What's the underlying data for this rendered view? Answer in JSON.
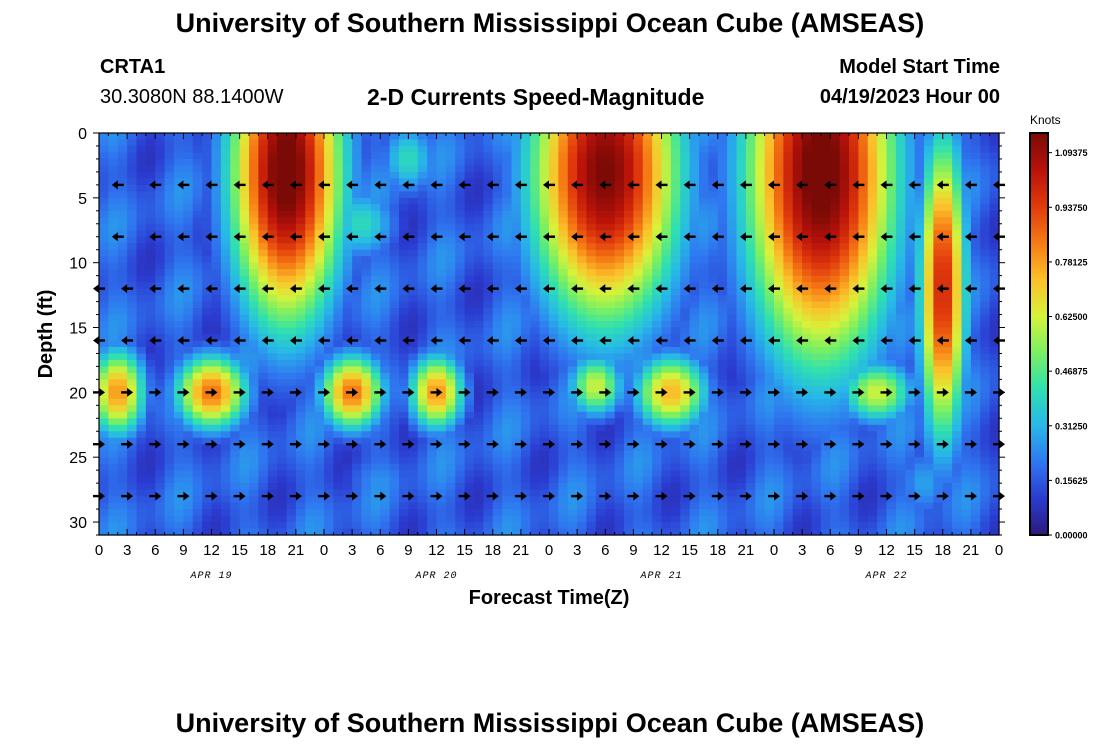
{
  "page": {
    "title_top": "University of Southern Mississippi Ocean Cube (AMSEAS)",
    "title_bottom": "University of Southern Mississippi Ocean Cube (AMSEAS)",
    "station_id": "CRTA1",
    "station_coords": "30.3080N  88.1400W",
    "subtitle": "2-D Currents Speed-Magnitude",
    "start_label": "Model Start Time",
    "start_value": "04/19/2023 Hour 00"
  },
  "chart_data": {
    "type": "heatmap",
    "title": "2-D Currents Speed-Magnitude",
    "xlabel": "Forecast Time(Z)",
    "ylabel": "Depth (ft)",
    "xlim": [
      0,
      96
    ],
    "ylim": [
      0,
      31
    ],
    "x_ticks": [
      {
        "v": 0,
        "label": "0"
      },
      {
        "v": 3,
        "label": "3"
      },
      {
        "v": 6,
        "label": "6"
      },
      {
        "v": 9,
        "label": "9"
      },
      {
        "v": 12,
        "label": "12"
      },
      {
        "v": 15,
        "label": "15"
      },
      {
        "v": 18,
        "label": "18"
      },
      {
        "v": 21,
        "label": "21"
      },
      {
        "v": 24,
        "label": "0"
      },
      {
        "v": 27,
        "label": "3"
      },
      {
        "v": 30,
        "label": "6"
      },
      {
        "v": 33,
        "label": "9"
      },
      {
        "v": 36,
        "label": "12"
      },
      {
        "v": 39,
        "label": "15"
      },
      {
        "v": 42,
        "label": "18"
      },
      {
        "v": 45,
        "label": "21"
      },
      {
        "v": 48,
        "label": "0"
      },
      {
        "v": 51,
        "label": "3"
      },
      {
        "v": 54,
        "label": "6"
      },
      {
        "v": 57,
        "label": "9"
      },
      {
        "v": 60,
        "label": "12"
      },
      {
        "v": 63,
        "label": "15"
      },
      {
        "v": 66,
        "label": "18"
      },
      {
        "v": 69,
        "label": "21"
      },
      {
        "v": 72,
        "label": "0"
      },
      {
        "v": 75,
        "label": "3"
      },
      {
        "v": 78,
        "label": "6"
      },
      {
        "v": 81,
        "label": "9"
      },
      {
        "v": 84,
        "label": "12"
      },
      {
        "v": 87,
        "label": "15"
      },
      {
        "v": 90,
        "label": "18"
      },
      {
        "v": 93,
        "label": "21"
      },
      {
        "v": 96,
        "label": "0"
      }
    ],
    "y_ticks": [
      0,
      5,
      10,
      15,
      20,
      25,
      30
    ],
    "date_labels": [
      {
        "v": 12,
        "label": "APR 19"
      },
      {
        "v": 36,
        "label": "APR 20"
      },
      {
        "v": 60,
        "label": "APR 21"
      },
      {
        "v": 84,
        "label": "APR 22"
      }
    ],
    "colorbar": {
      "label": "Knots",
      "min": 0.0,
      "max": 1.15,
      "ticks": [
        {
          "v": 1.09375,
          "label": "1.09375"
        },
        {
          "v": 0.9375,
          "label": "0.93750"
        },
        {
          "v": 0.78125,
          "label": "0.78125"
        },
        {
          "v": 0.625,
          "label": "0.62500"
        },
        {
          "v": 0.46875,
          "label": "0.46875"
        },
        {
          "v": 0.3125,
          "label": "0.31250"
        },
        {
          "v": 0.15625,
          "label": "0.15625"
        },
        {
          "v": 0.0,
          "label": "0.00000"
        }
      ],
      "colors": [
        "#2b1a7a",
        "#2b3bd0",
        "#2f78f0",
        "#27b8e8",
        "#2fe0b0",
        "#7cf060",
        "#d8f23a",
        "#fbc02a",
        "#f57a14",
        "#e03a0c",
        "#b8120a",
        "#7a0a06"
      ]
    },
    "speed_blobs": [
      {
        "t": 20,
        "d": 3,
        "rt": 6,
        "rd": 12,
        "a": 1.2
      },
      {
        "t": 54,
        "d": 3,
        "rt": 8,
        "rd": 12,
        "a": 1.15
      },
      {
        "t": 77,
        "d": 3,
        "rt": 8,
        "rd": 15,
        "a": 1.2
      },
      {
        "t": 90,
        "d": 12,
        "rt": 2.5,
        "rd": 12,
        "a": 1.0
      },
      {
        "t": 2,
        "d": 20,
        "rt": 3,
        "rd": 3.5,
        "a": 0.8
      },
      {
        "t": 12,
        "d": 20,
        "rt": 4,
        "rd": 3,
        "a": 0.85
      },
      {
        "t": 27,
        "d": 20,
        "rt": 3.5,
        "rd": 3,
        "a": 0.85
      },
      {
        "t": 36,
        "d": 20,
        "rt": 3,
        "rd": 3,
        "a": 0.8
      },
      {
        "t": 53,
        "d": 19.5,
        "rt": 3,
        "rd": 2.5,
        "a": 0.62
      },
      {
        "t": 61,
        "d": 20,
        "rt": 4,
        "rd": 3,
        "a": 0.75
      },
      {
        "t": 83,
        "d": 20,
        "rt": 4,
        "rd": 2.5,
        "a": 0.62
      },
      {
        "t": 28,
        "d": 7,
        "rt": 4,
        "rd": 3,
        "a": 0.4
      },
      {
        "t": 33,
        "d": 2,
        "rt": 3,
        "rd": 3,
        "a": 0.4
      },
      {
        "t": 88,
        "d": 27,
        "rt": 3,
        "rd": 3,
        "a": 0.28
      },
      {
        "t": 30,
        "d": 27,
        "rt": 4,
        "rd": 3,
        "a": 0.25
      }
    ],
    "arrows": [
      {
        "d": 4,
        "t": [
          2,
          6,
          9,
          12,
          15,
          18,
          21,
          24,
          27,
          30,
          33,
          36,
          39,
          42,
          45,
          48,
          51,
          54,
          57,
          60,
          63,
          66,
          69,
          72,
          75,
          78,
          81,
          84,
          87,
          90,
          93,
          96
        ],
        "dir": "W"
      },
      {
        "d": 8,
        "t": [
          2,
          6,
          9,
          12,
          15,
          18,
          21,
          24,
          27,
          30,
          33,
          36,
          39,
          42,
          45,
          48,
          51,
          54,
          57,
          60,
          63,
          66,
          69,
          72,
          75,
          78,
          81,
          84,
          87,
          90,
          93,
          96
        ],
        "dir": "W"
      },
      {
        "d": 12,
        "t": [
          0,
          3,
          6,
          9,
          12,
          15,
          18,
          21,
          24,
          27,
          30,
          33,
          36,
          39,
          42,
          45,
          48,
          51,
          54,
          57,
          60,
          63,
          66,
          69,
          72,
          75,
          78,
          81,
          84,
          87,
          90,
          93,
          96
        ],
        "dir": "W"
      },
      {
        "d": 16,
        "t": [
          0,
          3,
          6,
          9,
          12,
          15,
          18,
          21,
          24,
          27,
          30,
          33,
          36,
          39,
          42,
          45,
          48,
          51,
          54,
          57,
          60,
          63,
          66,
          69,
          72,
          75,
          78,
          81,
          84,
          87,
          90,
          93,
          96
        ],
        "dir": "W"
      },
      {
        "d": 20,
        "t": [
          0,
          3,
          6,
          9,
          12,
          15,
          18,
          21,
          24,
          27,
          30,
          33,
          36,
          39,
          42,
          45,
          48,
          51,
          54,
          57,
          60,
          63,
          66,
          69,
          72,
          75,
          78,
          81,
          84,
          87,
          90,
          93,
          96
        ],
        "dir": "E"
      },
      {
        "d": 24,
        "t": [
          0,
          3,
          6,
          9,
          12,
          15,
          18,
          21,
          24,
          27,
          30,
          33,
          36,
          39,
          42,
          45,
          48,
          51,
          54,
          57,
          60,
          63,
          66,
          69,
          72,
          75,
          78,
          81,
          84,
          87,
          90,
          93,
          96
        ],
        "dir": "E"
      },
      {
        "d": 28,
        "t": [
          0,
          3,
          6,
          9,
          12,
          15,
          18,
          21,
          24,
          27,
          30,
          33,
          36,
          39,
          42,
          45,
          48,
          51,
          54,
          57,
          60,
          63,
          66,
          69,
          72,
          75,
          78,
          81,
          84,
          87,
          90,
          93,
          96
        ],
        "dir": "E"
      }
    ]
  }
}
